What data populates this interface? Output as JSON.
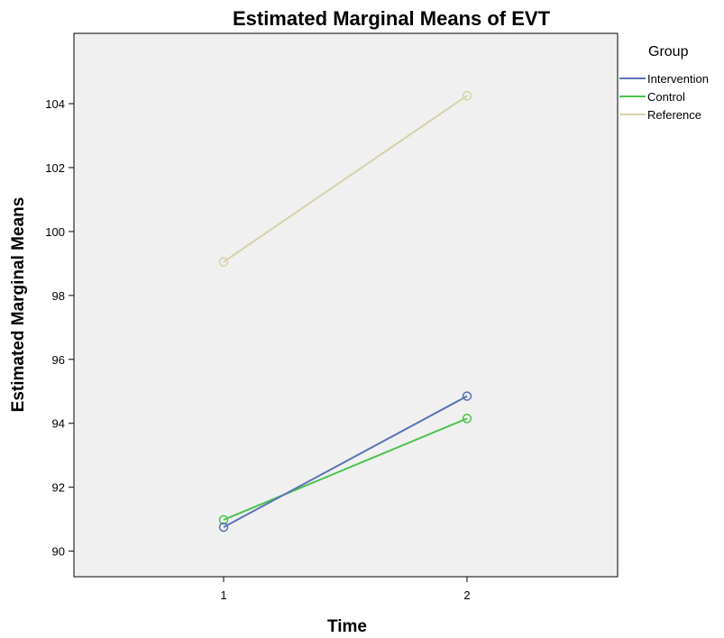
{
  "chart_data": {
    "type": "line",
    "title": "Estimated Marginal Means of EVT",
    "xlabel": "Time",
    "ylabel": "Estimated Marginal Means",
    "categories": [
      "1",
      "2"
    ],
    "x": [
      1,
      2
    ],
    "ylim": [
      89.2,
      106.2
    ],
    "y_ticks": [
      90,
      92,
      94,
      96,
      98,
      100,
      102,
      104
    ],
    "grid": false,
    "legend_title": "Group",
    "legend_position": "right",
    "markers": "open-circle",
    "background_color": "#f0f0f0",
    "series": [
      {
        "name": "Intervention",
        "color": "#5b73b6",
        "values": [
          90.75,
          94.85
        ]
      },
      {
        "name": "Control",
        "color": "#4cc34d",
        "values": [
          90.98,
          94.15
        ]
      },
      {
        "name": "Reference",
        "color": "#d7d3a9",
        "values": [
          99.05,
          104.25
        ]
      }
    ]
  }
}
